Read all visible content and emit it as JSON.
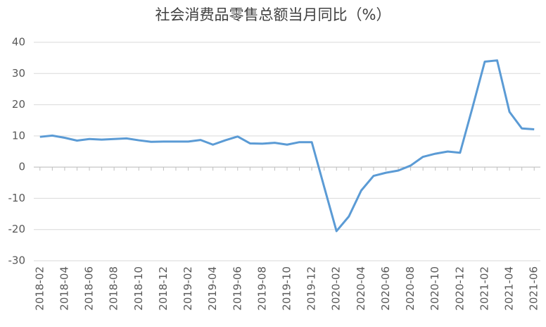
{
  "chart_data": {
    "type": "line",
    "title": "社会消费品零售总额当月同比（%）",
    "categories": [
      "2018-02",
      null,
      "2018-04",
      null,
      "2018-06",
      null,
      "2018-08",
      null,
      "2018-10",
      null,
      "2018-12",
      null,
      "2019-02",
      null,
      "2019-04",
      null,
      "2019-06",
      null,
      "2019-08",
      null,
      "2019-10",
      null,
      "2019-12",
      null,
      "2020-02",
      null,
      "2020-04",
      null,
      "2020-06",
      null,
      "2020-08",
      null,
      "2020-10",
      null,
      "2020-12",
      null,
      "2021-02",
      null,
      "2021-04",
      null,
      "2021-06"
    ],
    "series": [
      {
        "color": "#5b9bd5",
        "values": [
          9.7,
          10.1,
          9.4,
          8.5,
          9.0,
          8.8,
          9.0,
          9.2,
          8.6,
          8.1,
          8.2,
          8.2,
          8.2,
          8.7,
          7.2,
          8.6,
          9.8,
          7.6,
          7.5,
          7.8,
          7.2,
          8.0,
          8.0,
          -6.3,
          -20.5,
          -15.8,
          -7.5,
          -2.8,
          -1.8,
          -1.1,
          0.5,
          3.3,
          4.3,
          5.0,
          4.6,
          19.0,
          33.8,
          34.2,
          17.7,
          12.4,
          12.1
        ]
      }
    ],
    "ylim": [
      -30,
      40
    ],
    "yticks": [
      -30,
      -20,
      -10,
      0,
      10,
      20,
      30,
      40
    ],
    "grid": true
  }
}
